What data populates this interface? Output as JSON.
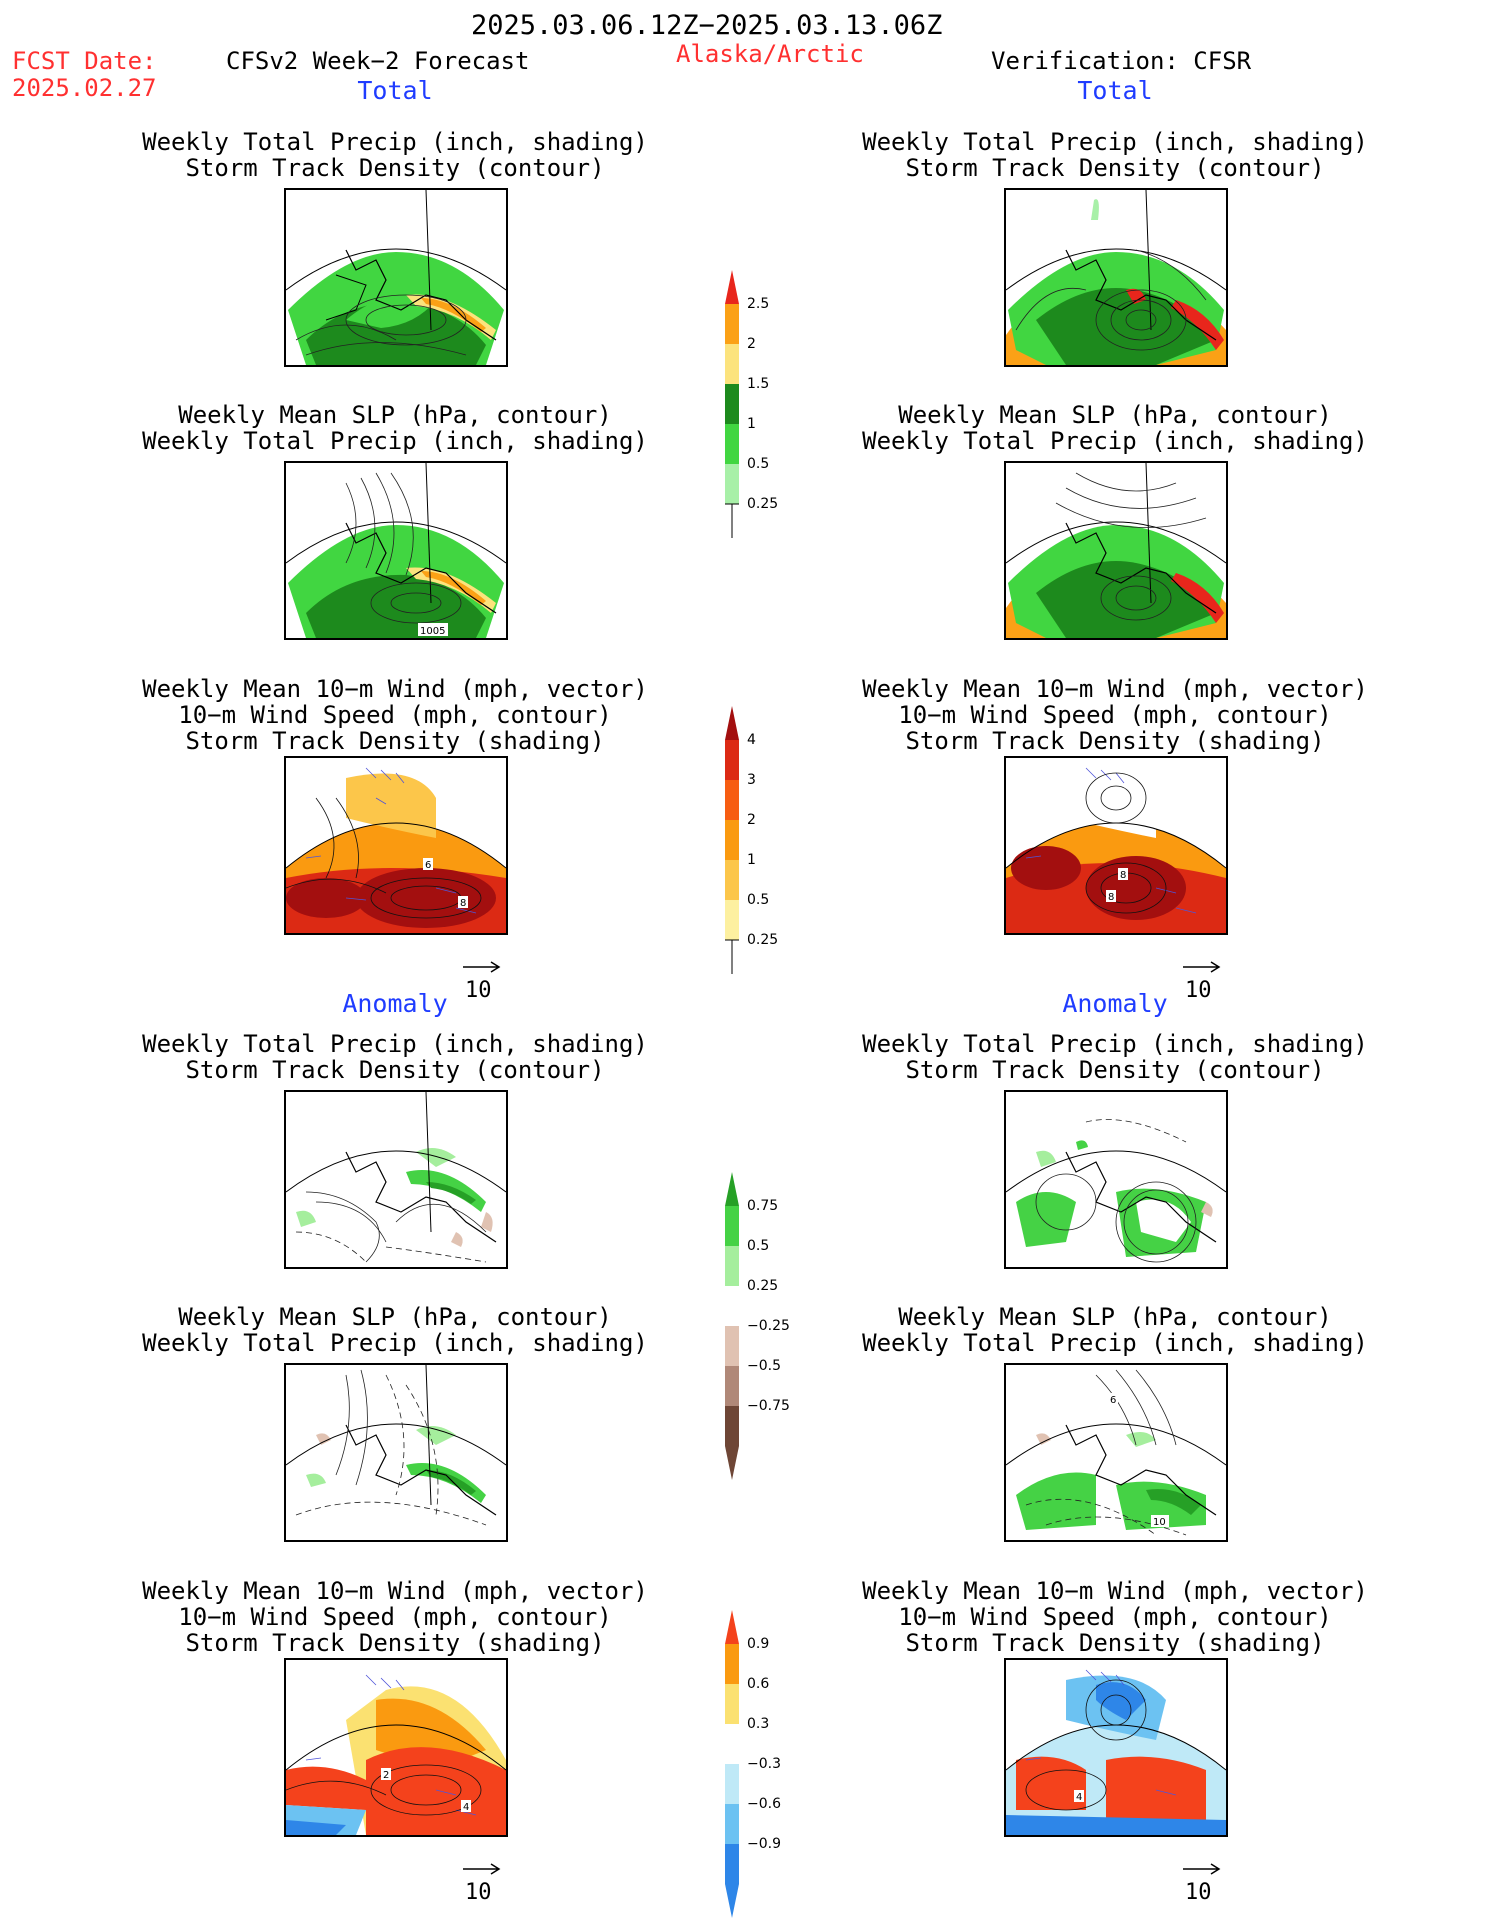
{
  "header": {
    "period": "2025.03.06.12Z−2025.03.13.06Z",
    "fcst_label": "FCST Date:",
    "fcst_date": "2025.02.27",
    "product": "CFSv2 Week−2 Forecast",
    "region": "Alaska/Arctic",
    "verification": "Verification: CFSR"
  },
  "sections": {
    "total": "Total",
    "anomaly": "Anomaly"
  },
  "panels": {
    "precip_track": {
      "line1": "Weekly Total Precip (inch, shading)",
      "line2": "Storm Track Density (contour)"
    },
    "slp_precip": {
      "line1": "Weekly Mean SLP (hPa, contour)",
      "line2": "Weekly Total Precip (inch, shading)"
    },
    "wind": {
      "line1": "Weekly Mean 10−m Wind (mph, vector)",
      "line2": "10−m Wind Speed (mph, contour)",
      "line3": "Storm Track Density (shading)"
    }
  },
  "map_labels": {
    "slp_total_fcst": "1005",
    "wind_total_fcst_a": "6",
    "wind_total_fcst_b": "8",
    "wind_total_obs_a": "8",
    "wind_total_obs_b": "8",
    "slp_anom_obs_a": "6",
    "slp_anom_obs_b": "10",
    "wind_anom_fcst_a": "2",
    "wind_anom_fcst_b": "4",
    "wind_anom_obs": "4"
  },
  "vector_reference": "10",
  "colorbars": {
    "precip_total": {
      "ticks": [
        "2.5",
        "2",
        "1.5",
        "1",
        "0.5",
        "0.25"
      ],
      "colors": [
        "#e8261c",
        "#fba116",
        "#fce37d",
        "#1d8a1d",
        "#41d641",
        "#a8f0a8"
      ]
    },
    "track_total": {
      "ticks": [
        "4",
        "3",
        "2",
        "1",
        "0.5",
        "0.25"
      ],
      "colors": [
        "#a30f0f",
        "#dc2a14",
        "#f75d12",
        "#fa9a10",
        "#fcc64a",
        "#fdf0a0"
      ]
    },
    "precip_anom": {
      "ticks": [
        "0.75",
        "0.5",
        "0.25",
        "−0.25",
        "−0.5",
        "−0.75"
      ],
      "colors": [
        "#26a026",
        "#45d245",
        "#a5ee9d",
        "#ffffff",
        "#e0c2b2",
        "#b08878",
        "#6e4636"
      ]
    },
    "track_anom": {
      "ticks": [
        "0.9",
        "0.6",
        "0.3",
        "−0.3",
        "−0.6",
        "−0.9"
      ],
      "colors": [
        "#f4421c",
        "#fa9a10",
        "#fbe171",
        "#ffffff",
        "#bfe9f7",
        "#6cc2f2",
        "#2e86e8"
      ]
    }
  }
}
